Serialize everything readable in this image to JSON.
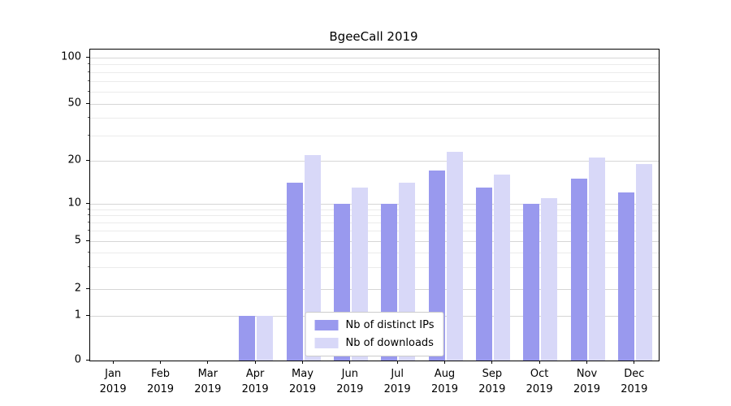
{
  "chart_data": {
    "type": "bar",
    "title": "BgeeCall 2019",
    "categories": [
      "Jan",
      "Feb",
      "Mar",
      "Apr",
      "May",
      "Jun",
      "Jul",
      "Aug",
      "Sep",
      "Oct",
      "Nov",
      "Dec"
    ],
    "year_label": "2019",
    "series": [
      {
        "name": "Nb of distinct IPs",
        "color": "#9999ee",
        "values": [
          0,
          0,
          0,
          1,
          14,
          10,
          10,
          17,
          13,
          10,
          15,
          12
        ]
      },
      {
        "name": "Nb of downloads",
        "color": "#d8d8f8",
        "values": [
          0,
          0,
          0,
          1,
          22,
          13,
          14,
          23,
          16,
          11,
          21,
          19
        ]
      },
      {
        "name": "",
        "color": "",
        "values": []
      }
    ],
    "y_ticks": [
      0,
      1,
      2,
      5,
      10,
      20,
      50,
      100
    ],
    "y_minor_ticks": [
      3,
      4,
      6,
      7,
      8,
      9,
      30,
      40,
      60,
      70,
      80,
      90
    ],
    "y_scale": "symlog",
    "ylim": [
      0,
      110
    ],
    "grid": "horizontal",
    "legend_position": "lower center",
    "xlabel": "",
    "ylabel": ""
  }
}
